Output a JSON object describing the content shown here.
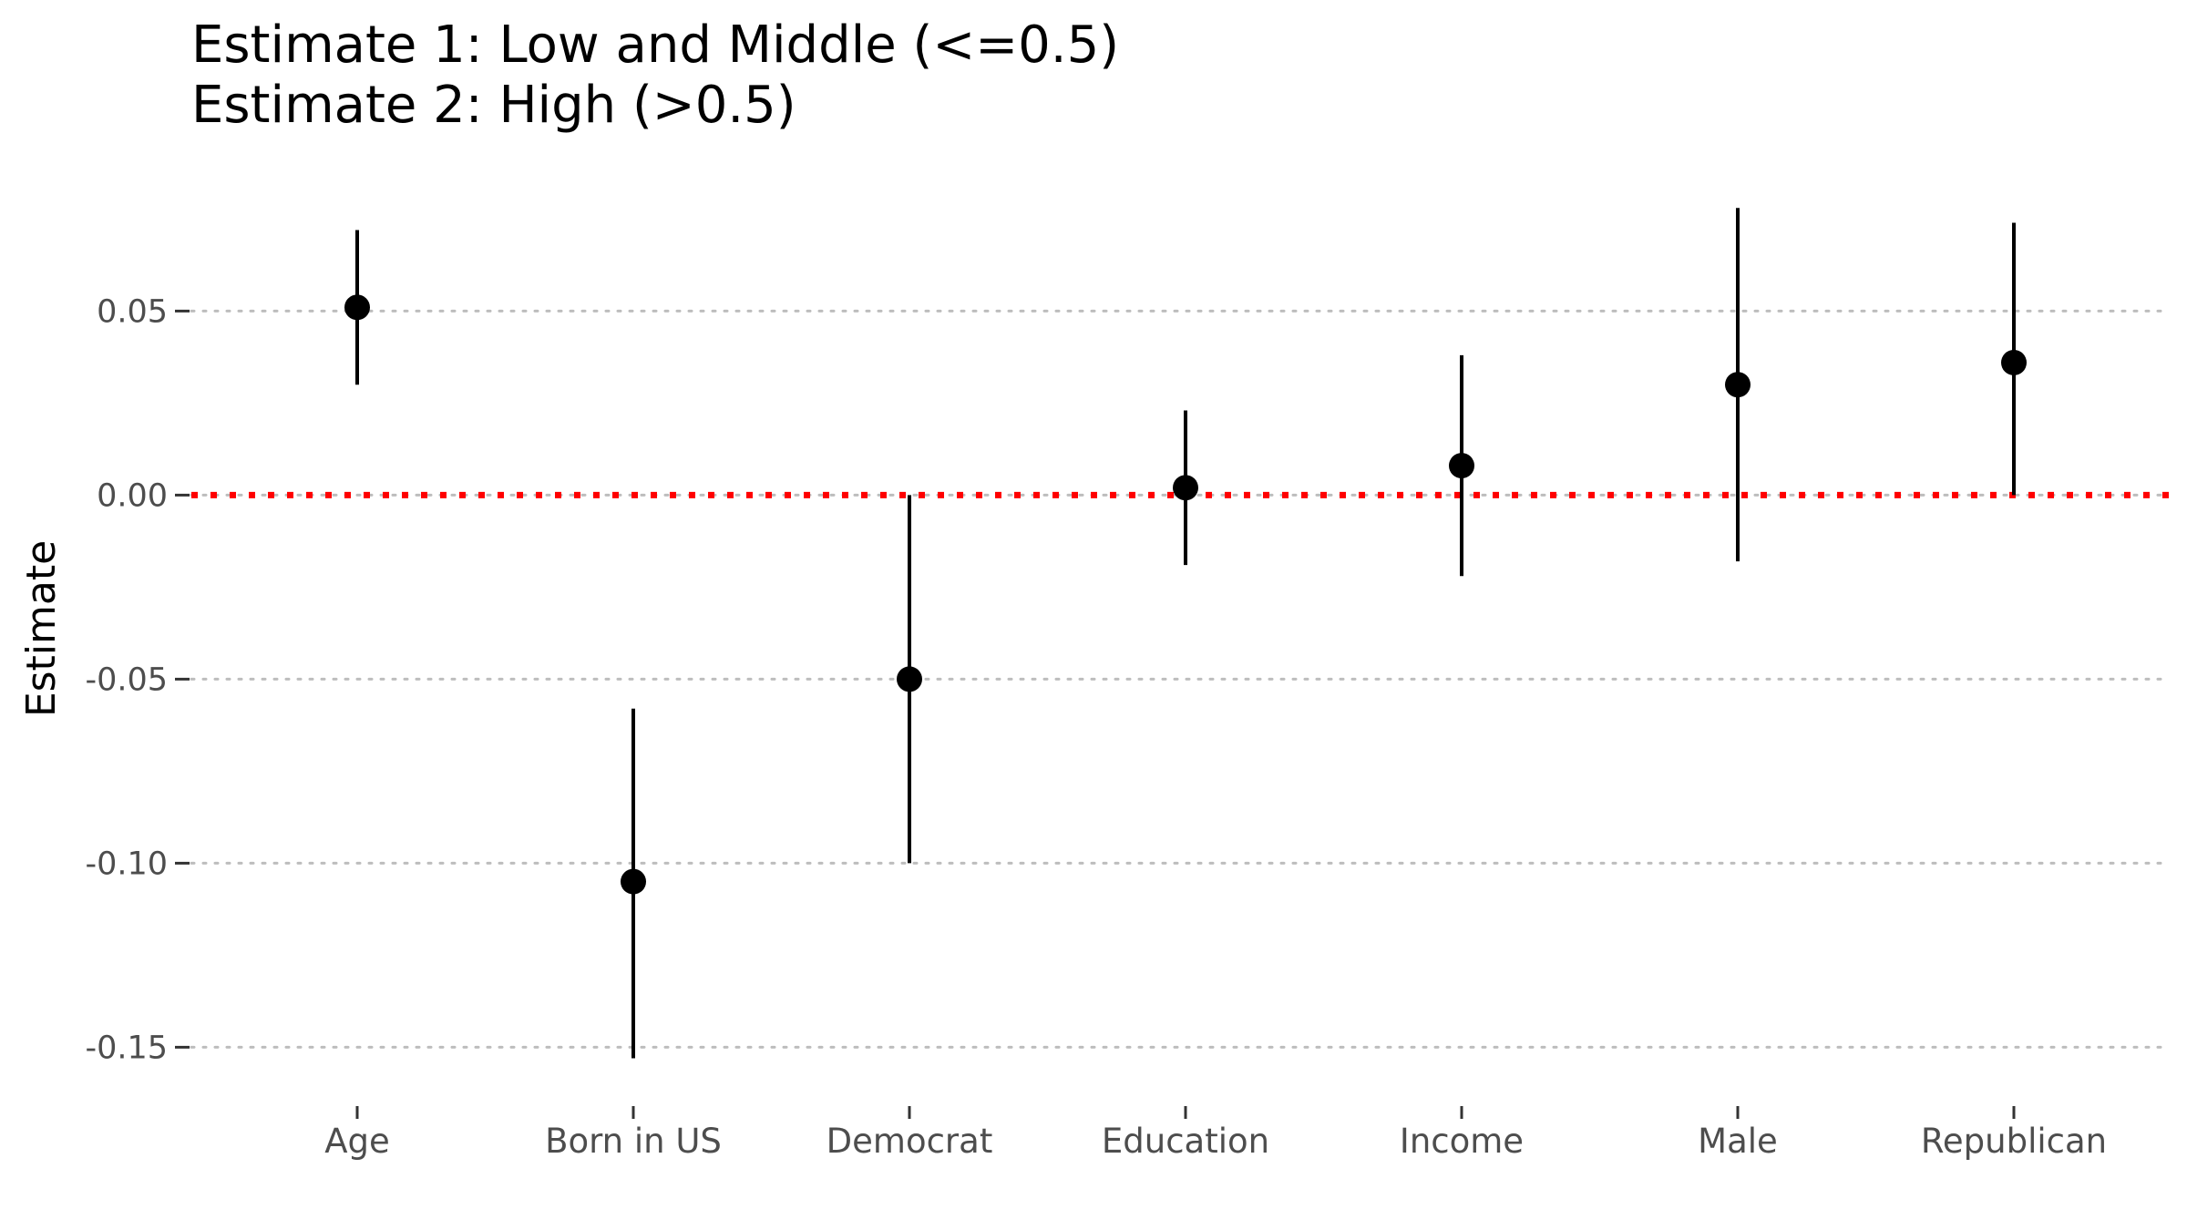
{
  "chart_data": {
    "type": "scatter",
    "title_lines": [
      "Estimate 1: Low and Middle (<=0.5)",
      "Estimate 2: High (>0.5)"
    ],
    "xlabel": "",
    "ylabel": "Estimate",
    "categories": [
      "Age",
      "Born in US",
      "Democrat",
      "Education",
      "Income",
      "Male",
      "Republican"
    ],
    "series": [
      {
        "values": [
          0.051,
          -0.105,
          -0.05,
          0.002,
          0.008,
          0.03,
          0.036
        ],
        "lower": [
          0.03,
          -0.153,
          -0.1,
          -0.019,
          -0.022,
          -0.018,
          0.0
        ],
        "upper": [
          0.072,
          -0.058,
          0.0,
          0.023,
          0.038,
          0.078,
          0.074
        ]
      }
    ],
    "yticks": [
      0.05,
      0.0,
      -0.05,
      -0.1,
      -0.15
    ],
    "ytick_labels": [
      "0.05",
      "0.00",
      "-0.05",
      "-0.10",
      "-0.15"
    ],
    "ylim": [
      -0.165,
      0.085
    ],
    "reference_line": {
      "y": 0,
      "color": "#ff0000",
      "style": "dotted"
    },
    "grid": "horizontal-dotted",
    "legend": "none",
    "colors": {
      "point": "#000000",
      "errorbar": "#000000",
      "grid": "#bdbdbd",
      "tick_label": "#4d4d4d"
    }
  }
}
